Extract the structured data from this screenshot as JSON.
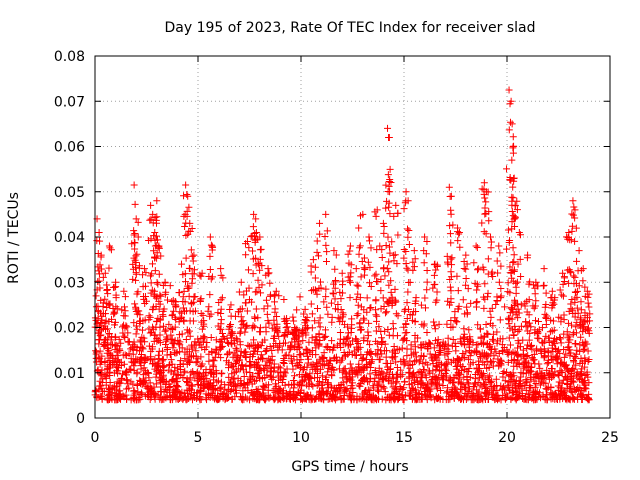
{
  "chart_data": {
    "type": "scatter",
    "title": "Day 195 of 2023, Rate Of TEC Index for receiver slad",
    "xlabel": "GPS time / hours",
    "ylabel": "ROTI / TECUs",
    "xlim": [
      0,
      25
    ],
    "ylim": [
      0,
      0.08
    ],
    "x_ticks": [
      0,
      5,
      10,
      15,
      20,
      25
    ],
    "y_ticks": [
      0,
      0.01,
      0.02,
      0.03,
      0.04,
      0.05,
      0.06,
      0.07,
      0.08
    ],
    "x_tick_labels": [
      "0",
      "5",
      "10",
      "15",
      "20",
      "25"
    ],
    "y_tick_labels": [
      "0",
      "0.01",
      "0.02",
      "0.03",
      "0.04",
      "0.05",
      "0.06",
      "0.07",
      "0.08"
    ],
    "grid": true,
    "marker": "+",
    "color": "#ff0000",
    "series": [
      {
        "name": "ROTI",
        "points": [
          [
            0.1,
            0.044
          ],
          [
            0.2,
            0.041
          ],
          [
            0.3,
            0.036
          ],
          [
            0.5,
            0.032
          ],
          [
            0.7,
            0.038
          ],
          [
            1.0,
            0.03
          ],
          [
            1.4,
            0.028
          ],
          [
            1.9,
            0.0515
          ],
          [
            2.0,
            0.044
          ],
          [
            2.1,
            0.04
          ],
          [
            2.4,
            0.033
          ],
          [
            2.7,
            0.047
          ],
          [
            2.8,
            0.045
          ],
          [
            2.9,
            0.041
          ],
          [
            3.0,
            0.048
          ],
          [
            3.1,
            0.038
          ],
          [
            3.4,
            0.03
          ],
          [
            3.8,
            0.026
          ],
          [
            4.2,
            0.034
          ],
          [
            4.4,
            0.0515
          ],
          [
            4.5,
            0.049
          ],
          [
            4.6,
            0.043
          ],
          [
            4.8,
            0.036
          ],
          [
            5.2,
            0.032
          ],
          [
            5.6,
            0.04
          ],
          [
            6.1,
            0.033
          ],
          [
            6.6,
            0.025
          ],
          [
            7.1,
            0.03
          ],
          [
            7.4,
            0.039
          ],
          [
            7.7,
            0.045
          ],
          [
            7.8,
            0.044
          ],
          [
            8.0,
            0.04
          ],
          [
            8.4,
            0.033
          ],
          [
            8.8,
            0.028
          ],
          [
            9.3,
            0.022
          ],
          [
            9.7,
            0.02
          ],
          [
            10.2,
            0.024
          ],
          [
            10.6,
            0.035
          ],
          [
            10.9,
            0.043
          ],
          [
            11.2,
            0.045
          ],
          [
            11.6,
            0.037
          ],
          [
            12.0,
            0.032
          ],
          [
            12.4,
            0.038
          ],
          [
            12.8,
            0.042
          ],
          [
            13.0,
            0.045
          ],
          [
            13.3,
            0.04
          ],
          [
            13.7,
            0.046
          ],
          [
            14.0,
            0.043
          ],
          [
            14.2,
            0.064
          ],
          [
            14.25,
            0.062
          ],
          [
            14.3,
            0.05
          ],
          [
            14.6,
            0.047
          ],
          [
            15.1,
            0.05
          ],
          [
            15.2,
            0.048
          ],
          [
            15.5,
            0.037
          ],
          [
            16.0,
            0.04
          ],
          [
            16.5,
            0.034
          ],
          [
            17.2,
            0.051
          ],
          [
            17.3,
            0.049
          ],
          [
            17.6,
            0.042
          ],
          [
            18.0,
            0.036
          ],
          [
            18.5,
            0.038
          ],
          [
            18.9,
            0.052
          ],
          [
            19.0,
            0.05
          ],
          [
            19.2,
            0.04
          ],
          [
            19.6,
            0.038
          ],
          [
            20.1,
            0.0725
          ],
          [
            20.2,
            0.07
          ],
          [
            20.25,
            0.065
          ],
          [
            20.3,
            0.06
          ],
          [
            20.35,
            0.053
          ],
          [
            20.4,
            0.047
          ],
          [
            20.6,
            0.041
          ],
          [
            21.0,
            0.036
          ],
          [
            21.4,
            0.03
          ],
          [
            21.8,
            0.033
          ],
          [
            22.2,
            0.028
          ],
          [
            22.7,
            0.032
          ],
          [
            23.0,
            0.041
          ],
          [
            23.2,
            0.048
          ],
          [
            23.3,
            0.046
          ],
          [
            23.5,
            0.037
          ],
          [
            23.7,
            0.033
          ],
          [
            23.9,
            0.028
          ]
        ],
        "baseline_band": [
          0.004,
          0.018
        ]
      }
    ]
  }
}
